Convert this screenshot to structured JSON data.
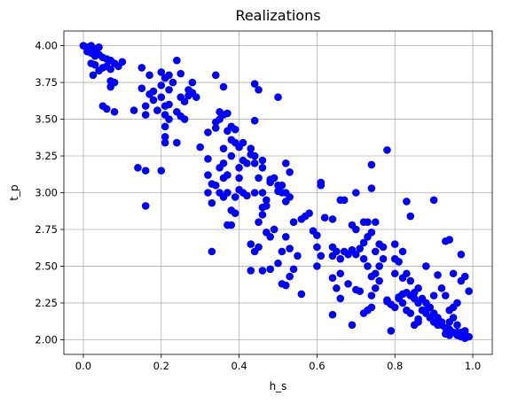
{
  "chart_data": {
    "type": "scatter",
    "title": "Realizations",
    "xlabel": "h_s",
    "ylabel": "t_p",
    "xlim": [
      -0.05,
      1.05
    ],
    "ylim": [
      1.9,
      4.1
    ],
    "xticks": [
      0.0,
      0.2,
      0.4,
      0.6,
      0.8,
      1.0
    ],
    "xtick_labels": [
      "0.0",
      "0.2",
      "0.4",
      "0.6",
      "0.8",
      "1.0"
    ],
    "yticks": [
      2.0,
      2.25,
      2.5,
      2.75,
      3.0,
      3.25,
      3.5,
      3.75,
      4.0
    ],
    "ytick_labels": [
      "2.00",
      "2.25",
      "2.50",
      "2.75",
      "3.00",
      "3.25",
      "3.50",
      "3.75",
      "4.00"
    ],
    "grid": true,
    "marker_color": "#0000ff",
    "series": [
      {
        "points": [
          [
            0.0,
            4.0
          ],
          [
            0.01,
            3.99
          ],
          [
            0.02,
            4.0
          ],
          [
            0.03,
            3.98
          ],
          [
            0.04,
            3.99
          ],
          [
            0.01,
            3.96
          ],
          [
            0.02,
            3.95
          ],
          [
            0.03,
            3.93
          ],
          [
            0.04,
            3.94
          ],
          [
            0.05,
            3.92
          ],
          [
            0.06,
            3.91
          ],
          [
            0.07,
            3.9
          ],
          [
            0.08,
            3.88
          ],
          [
            0.09,
            3.86
          ],
          [
            0.1,
            3.89
          ],
          [
            0.05,
            3.85
          ],
          [
            0.06,
            3.86
          ],
          [
            0.07,
            3.84
          ],
          [
            0.03,
            3.87
          ],
          [
            0.02,
            3.88
          ],
          [
            0.04,
            3.83
          ],
          [
            0.025,
            3.8
          ],
          [
            0.08,
            3.75
          ],
          [
            0.07,
            3.72
          ],
          [
            0.07,
            3.76
          ],
          [
            0.05,
            3.59
          ],
          [
            0.06,
            3.57
          ],
          [
            0.08,
            3.55
          ],
          [
            0.13,
            3.56
          ],
          [
            0.16,
            3.53
          ],
          [
            0.16,
            3.59
          ],
          [
            0.18,
            3.63
          ],
          [
            0.19,
            3.56
          ],
          [
            0.2,
            3.65
          ],
          [
            0.21,
            3.59
          ],
          [
            0.22,
            3.6
          ],
          [
            0.21,
            3.53
          ],
          [
            0.15,
            3.71
          ],
          [
            0.17,
            3.67
          ],
          [
            0.18,
            3.69
          ],
          [
            0.17,
            3.8
          ],
          [
            0.15,
            3.85
          ],
          [
            0.2,
            3.82
          ],
          [
            0.21,
            3.78
          ],
          [
            0.24,
            3.9
          ],
          [
            0.22,
            3.8
          ],
          [
            0.25,
            3.81
          ],
          [
            0.23,
            3.75
          ],
          [
            0.22,
            3.7
          ],
          [
            0.2,
            3.73
          ],
          [
            0.25,
            3.65
          ],
          [
            0.26,
            3.62
          ],
          [
            0.27,
            3.7
          ],
          [
            0.28,
            3.75
          ],
          [
            0.27,
            3.66
          ],
          [
            0.28,
            3.68
          ],
          [
            0.29,
            3.65
          ],
          [
            0.24,
            3.55
          ],
          [
            0.25,
            3.52
          ],
          [
            0.26,
            3.5
          ],
          [
            0.22,
            3.5
          ],
          [
            0.21,
            3.45
          ],
          [
            0.21,
            3.38
          ],
          [
            0.21,
            3.34
          ],
          [
            0.24,
            3.34
          ],
          [
            0.14,
            3.17
          ],
          [
            0.16,
            3.15
          ],
          [
            0.16,
            2.91
          ],
          [
            0.2,
            3.15
          ],
          [
            0.32,
            3.41
          ],
          [
            0.34,
            3.44
          ],
          [
            0.34,
            3.48
          ],
          [
            0.35,
            3.5
          ],
          [
            0.36,
            3.53
          ],
          [
            0.37,
            3.54
          ],
          [
            0.34,
            3.8
          ],
          [
            0.36,
            3.72
          ],
          [
            0.35,
            3.55
          ],
          [
            0.38,
            3.45
          ],
          [
            0.37,
            3.42
          ],
          [
            0.39,
            3.43
          ],
          [
            0.38,
            3.36
          ],
          [
            0.36,
            3.3
          ],
          [
            0.38,
            3.25
          ],
          [
            0.36,
            3.2
          ],
          [
            0.35,
            3.17
          ],
          [
            0.37,
            3.12
          ],
          [
            0.36,
            3.1
          ],
          [
            0.32,
            3.23
          ],
          [
            0.3,
            3.31
          ],
          [
            0.32,
            3.12
          ],
          [
            0.33,
            3.06
          ],
          [
            0.34,
            3.05
          ],
          [
            0.32,
            3.0
          ],
          [
            0.35,
            3.0
          ],
          [
            0.33,
            2.93
          ],
          [
            0.37,
            3.0
          ],
          [
            0.36,
            2.97
          ],
          [
            0.38,
            2.88
          ],
          [
            0.39,
            2.86
          ],
          [
            0.37,
            2.78
          ],
          [
            0.38,
            2.78
          ],
          [
            0.39,
            2.97
          ],
          [
            0.4,
            3.02
          ],
          [
            0.41,
            3.0
          ],
          [
            0.42,
            2.98
          ],
          [
            0.4,
            3.1
          ],
          [
            0.4,
            3.17
          ],
          [
            0.41,
            3.22
          ],
          [
            0.4,
            3.31
          ],
          [
            0.39,
            3.34
          ],
          [
            0.41,
            3.34
          ],
          [
            0.43,
            3.26
          ],
          [
            0.44,
            3.25
          ],
          [
            0.44,
            3.2
          ],
          [
            0.45,
            3.1
          ],
          [
            0.46,
            3.17
          ],
          [
            0.46,
            3.22
          ],
          [
            0.43,
            3.3
          ],
          [
            0.42,
            3.2
          ],
          [
            0.44,
            3.74
          ],
          [
            0.45,
            3.7
          ],
          [
            0.44,
            3.49
          ],
          [
            0.5,
            3.65
          ],
          [
            0.33,
            2.6
          ],
          [
            0.44,
            3.0
          ],
          [
            0.46,
            3.0
          ],
          [
            0.47,
            2.95
          ],
          [
            0.48,
            3.07
          ],
          [
            0.49,
            3.1
          ],
          [
            0.5,
            3.05
          ],
          [
            0.5,
            3.01
          ],
          [
            0.51,
            3.0
          ],
          [
            0.52,
            3.0
          ],
          [
            0.53,
            2.97
          ],
          [
            0.52,
            2.94
          ],
          [
            0.51,
            3.05
          ],
          [
            0.52,
            3.2
          ],
          [
            0.53,
            3.14
          ],
          [
            0.48,
            3.09
          ],
          [
            0.47,
            2.91
          ],
          [
            0.46,
            2.9
          ],
          [
            0.46,
            2.85
          ],
          [
            0.45,
            2.8
          ],
          [
            0.47,
            2.73
          ],
          [
            0.48,
            2.7
          ],
          [
            0.49,
            2.75
          ],
          [
            0.45,
            2.63
          ],
          [
            0.43,
            2.65
          ],
          [
            0.44,
            2.6
          ],
          [
            0.43,
            2.47
          ],
          [
            0.46,
            2.47
          ],
          [
            0.48,
            2.48
          ],
          [
            0.5,
            2.52
          ],
          [
            0.51,
            2.38
          ],
          [
            0.52,
            2.37
          ],
          [
            0.53,
            2.43
          ],
          [
            0.54,
            2.48
          ],
          [
            0.55,
            2.57
          ],
          [
            0.53,
            2.62
          ],
          [
            0.51,
            2.6
          ],
          [
            0.52,
            2.7
          ],
          [
            0.54,
            2.8
          ],
          [
            0.56,
            2.82
          ],
          [
            0.57,
            2.84
          ],
          [
            0.58,
            2.86
          ],
          [
            0.56,
            2.31
          ],
          [
            0.59,
            2.74
          ],
          [
            0.6,
            2.71
          ],
          [
            0.6,
            2.63
          ],
          [
            0.61,
            2.57
          ],
          [
            0.6,
            2.5
          ],
          [
            0.61,
            3.05
          ],
          [
            0.61,
            3.07
          ],
          [
            0.62,
            2.83
          ],
          [
            0.64,
            2.82
          ],
          [
            0.64,
            2.63
          ],
          [
            0.64,
            2.57
          ],
          [
            0.65,
            2.6
          ],
          [
            0.66,
            2.55
          ],
          [
            0.67,
            2.6
          ],
          [
            0.68,
            2.58
          ],
          [
            0.69,
            2.61
          ],
          [
            0.7,
            2.58
          ],
          [
            0.71,
            2.62
          ],
          [
            0.72,
            2.66
          ],
          [
            0.73,
            2.7
          ],
          [
            0.74,
            2.73
          ],
          [
            0.72,
            2.55
          ],
          [
            0.73,
            2.5
          ],
          [
            0.74,
            2.43
          ],
          [
            0.75,
            2.45
          ],
          [
            0.76,
            2.5
          ],
          [
            0.77,
            2.55
          ],
          [
            0.75,
            2.6
          ],
          [
            0.76,
            2.65
          ],
          [
            0.76,
            2.4
          ],
          [
            0.75,
            2.35
          ],
          [
            0.74,
            2.3
          ],
          [
            0.74,
            2.22
          ],
          [
            0.73,
            2.2
          ],
          [
            0.72,
            2.18
          ],
          [
            0.7,
            2.34
          ],
          [
            0.71,
            2.33
          ],
          [
            0.68,
            2.38
          ],
          [
            0.66,
            2.45
          ],
          [
            0.65,
            2.35
          ],
          [
            0.66,
            2.28
          ],
          [
            0.64,
            2.42
          ],
          [
            0.64,
            2.17
          ],
          [
            0.69,
            2.1
          ],
          [
            0.66,
            2.95
          ],
          [
            0.67,
            2.95
          ],
          [
            0.7,
            3.0
          ],
          [
            0.69,
            2.78
          ],
          [
            0.7,
            2.75
          ],
          [
            0.72,
            2.8
          ],
          [
            0.73,
            2.8
          ],
          [
            0.75,
            2.8
          ],
          [
            0.74,
            3.19
          ],
          [
            0.74,
            3.03
          ],
          [
            0.78,
            3.29
          ],
          [
            0.77,
            2.63
          ],
          [
            0.78,
            2.27
          ],
          [
            0.79,
            2.24
          ],
          [
            0.79,
            2.06
          ],
          [
            0.8,
            2.45
          ],
          [
            0.8,
            2.55
          ],
          [
            0.81,
            2.53
          ],
          [
            0.8,
            2.65
          ],
          [
            0.81,
            2.29
          ],
          [
            0.82,
            2.31
          ],
          [
            0.83,
            2.32
          ],
          [
            0.84,
            2.3
          ],
          [
            0.85,
            2.28
          ],
          [
            0.86,
            2.25
          ],
          [
            0.87,
            2.2
          ],
          [
            0.88,
            2.18
          ],
          [
            0.89,
            2.15
          ],
          [
            0.9,
            2.12
          ],
          [
            0.91,
            2.1
          ],
          [
            0.92,
            2.1
          ],
          [
            0.93,
            2.08
          ],
          [
            0.94,
            2.07
          ],
          [
            0.95,
            2.05
          ],
          [
            0.96,
            2.03
          ],
          [
            0.97,
            2.02
          ],
          [
            0.98,
            2.01
          ],
          [
            0.99,
            2.02
          ],
          [
            0.98,
            2.06
          ],
          [
            0.96,
            2.05
          ],
          [
            0.94,
            2.03
          ],
          [
            0.93,
            2.04
          ],
          [
            0.92,
            2.12
          ],
          [
            0.91,
            2.15
          ],
          [
            0.9,
            2.18
          ],
          [
            0.89,
            2.22
          ],
          [
            0.88,
            2.25
          ],
          [
            0.87,
            2.28
          ],
          [
            0.86,
            2.35
          ],
          [
            0.85,
            2.32
          ],
          [
            0.84,
            2.4
          ],
          [
            0.83,
            2.45
          ],
          [
            0.82,
            2.42
          ],
          [
            0.84,
            2.84
          ],
          [
            0.83,
            2.94
          ],
          [
            0.82,
            2.6
          ],
          [
            0.83,
            2.2
          ],
          [
            0.84,
            2.18
          ],
          [
            0.86,
            2.12
          ],
          [
            0.88,
            2.2
          ],
          [
            0.9,
            2.3
          ],
          [
            0.92,
            2.35
          ],
          [
            0.93,
            2.3
          ],
          [
            0.94,
            2.2
          ],
          [
            0.95,
            2.22
          ],
          [
            0.96,
            2.25
          ],
          [
            0.97,
            2.4
          ],
          [
            0.98,
            2.43
          ],
          [
            0.99,
            2.33
          ],
          [
            0.91,
            2.44
          ],
          [
            0.93,
            2.67
          ],
          [
            0.94,
            2.68
          ],
          [
            0.95,
            2.45
          ],
          [
            0.97,
            2.58
          ],
          [
            0.88,
            2.5
          ],
          [
            0.9,
            2.95
          ],
          [
            0.86,
            2.14
          ],
          [
            0.85,
            2.1
          ],
          [
            0.95,
            2.15
          ],
          [
            0.96,
            2.1
          ],
          [
            0.97,
            2.05
          ],
          [
            0.94,
            2.12
          ],
          [
            0.81,
            2.28
          ],
          [
            0.82,
            2.25
          ],
          [
            0.8,
            2.22
          ],
          [
            0.78,
            2.26
          ]
        ]
      }
    ]
  }
}
